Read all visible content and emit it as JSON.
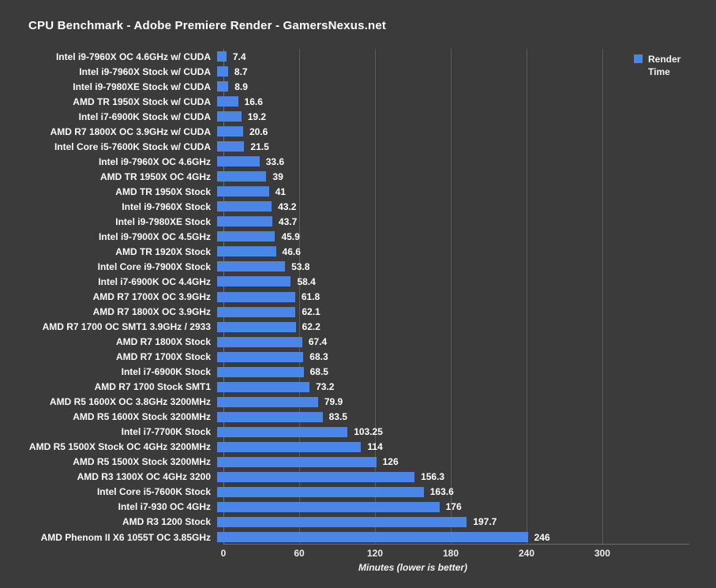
{
  "title": "CPU Benchmark - Adobe Premiere Render - GamersNexus.net",
  "colors": {
    "background": "#3b3b3b",
    "bar": "#4a86e8",
    "grid": "#5c5c5c",
    "text": "#ffffff"
  },
  "chart_data": {
    "type": "bar",
    "orientation": "horizontal",
    "title": "CPU Benchmark - Adobe Premiere Render - GamersNexus.net",
    "xlabel": "Minutes (lower is better)",
    "ylabel": "",
    "xlim": [
      0,
      300
    ],
    "xticks": [
      0,
      60,
      120,
      180,
      240,
      300
    ],
    "grid": true,
    "legend": [
      "Render Time"
    ],
    "legend_position": "top-right",
    "categories": [
      "Intel i9-7960X OC 4.6GHz w/ CUDA",
      "Intel i9-7960X Stock w/ CUDA",
      "Intel i9-7980XE Stock w/ CUDA",
      "AMD TR 1950X Stock w/ CUDA",
      "Intel i7-6900K Stock w/ CUDA",
      "AMD R7 1800X OC 3.9GHz w/ CUDA",
      "Intel Core i5-7600K Stock w/ CUDA",
      "Intel i9-7960X OC 4.6GHz",
      "AMD TR 1950X OC 4GHz",
      "AMD TR 1950X Stock",
      "Intel i9-7960X Stock",
      "Intel i9-7980XE Stock",
      "Intel i9-7900X OC 4.5GHz",
      "AMD TR 1920X Stock",
      "Intel Core i9-7900X Stock",
      "Intel i7-6900K OC 4.4GHz",
      "AMD R7 1700X OC 3.9GHz",
      "AMD R7 1800X OC 3.9GHz",
      "AMD R7 1700 OC SMT1 3.9GHz / 2933",
      "AMD R7 1800X Stock",
      "AMD R7 1700X Stock",
      "Intel i7-6900K Stock",
      "AMD R7 1700 Stock SMT1",
      "AMD R5 1600X OC 3.8GHz 3200MHz",
      "AMD R5 1600X Stock 3200MHz",
      "Intel i7-7700K Stock",
      "AMD R5 1500X Stock OC 4GHz 3200MHz",
      "AMD R5 1500X Stock 3200MHz",
      "AMD R3 1300X OC 4GHz 3200",
      "Intel Core i5-7600K Stock",
      "Intel i7-930 OC 4GHz",
      "AMD R3 1200 Stock",
      "AMD Phenom II X6 1055T OC 3.85GHz"
    ],
    "values": [
      7.4,
      8.7,
      8.9,
      16.6,
      19.2,
      20.6,
      21.5,
      33.6,
      39,
      41,
      43.2,
      43.7,
      45.9,
      46.6,
      53.8,
      58.4,
      61.8,
      62.1,
      62.2,
      67.4,
      68.3,
      68.5,
      73.2,
      79.9,
      83.5,
      103.25,
      114,
      126,
      156.3,
      163.6,
      176,
      197.7,
      246
    ]
  },
  "legend_label": "Render Time"
}
